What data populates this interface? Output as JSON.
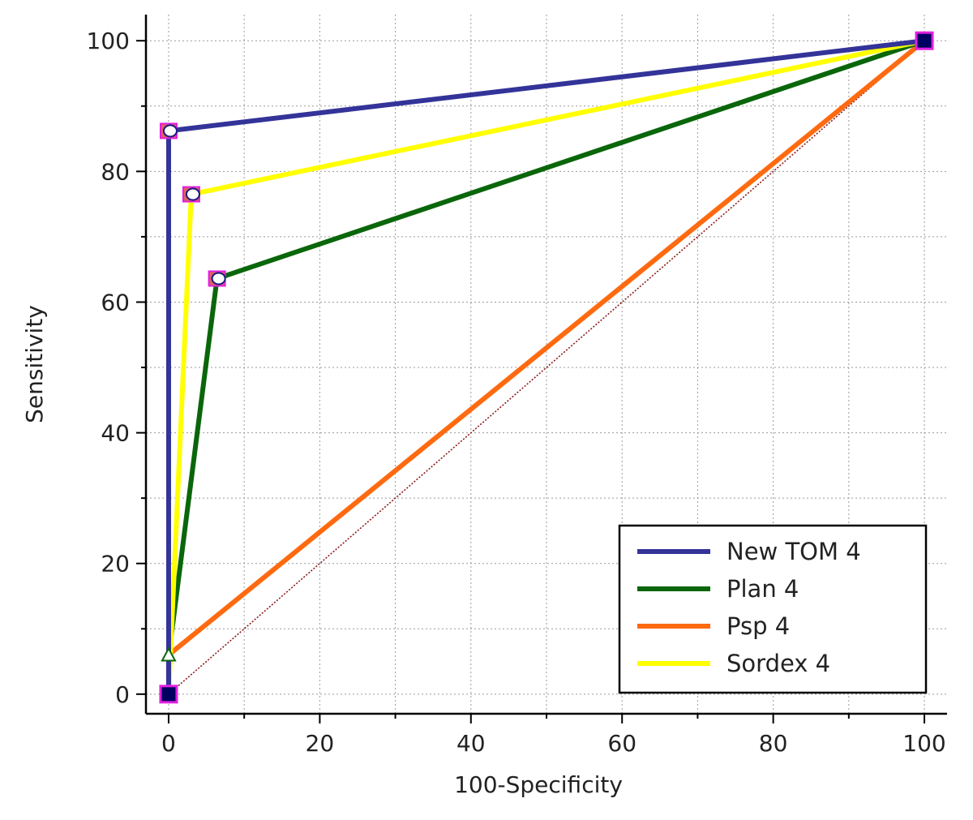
{
  "chart_data": {
    "type": "line",
    "title": "",
    "xlabel": "100-Specificity",
    "ylabel": "Sensitivity",
    "xlim": [
      -3,
      103
    ],
    "ylim": [
      -3,
      104
    ],
    "xticks": [
      0,
      20,
      40,
      60,
      80,
      100
    ],
    "yticks": [
      0,
      20,
      40,
      60,
      80,
      100
    ],
    "grid": true,
    "legend_position": "bottom-right",
    "reference_line": {
      "x": [
        0,
        100
      ],
      "y": [
        0,
        100
      ],
      "color": "#8b1a1a",
      "style": "dotted"
    },
    "series": [
      {
        "name": "New TOM 4",
        "color": "#333399",
        "x": [
          0,
          0,
          100
        ],
        "y": [
          0,
          86.2,
          100
        ],
        "cut_point": [
          0,
          86.2
        ]
      },
      {
        "name": "Plan 4",
        "color": "#0a660a",
        "x": [
          0,
          0,
          6.4,
          100
        ],
        "y": [
          0,
          5.8,
          63.6,
          100
        ],
        "cut_point": [
          6.4,
          63.6
        ]
      },
      {
        "name": "Psp 4",
        "color": "#ff6a10",
        "x": [
          0,
          0,
          100
        ],
        "y": [
          0,
          6.0,
          100
        ],
        "cut_point": [
          0,
          6.0
        ]
      },
      {
        "name": "Sordex 4",
        "color": "#ffff00",
        "x": [
          0,
          3.0,
          100
        ],
        "y": [
          0,
          76.5,
          100
        ],
        "cut_point": [
          3.0,
          76.5
        ]
      }
    ]
  }
}
